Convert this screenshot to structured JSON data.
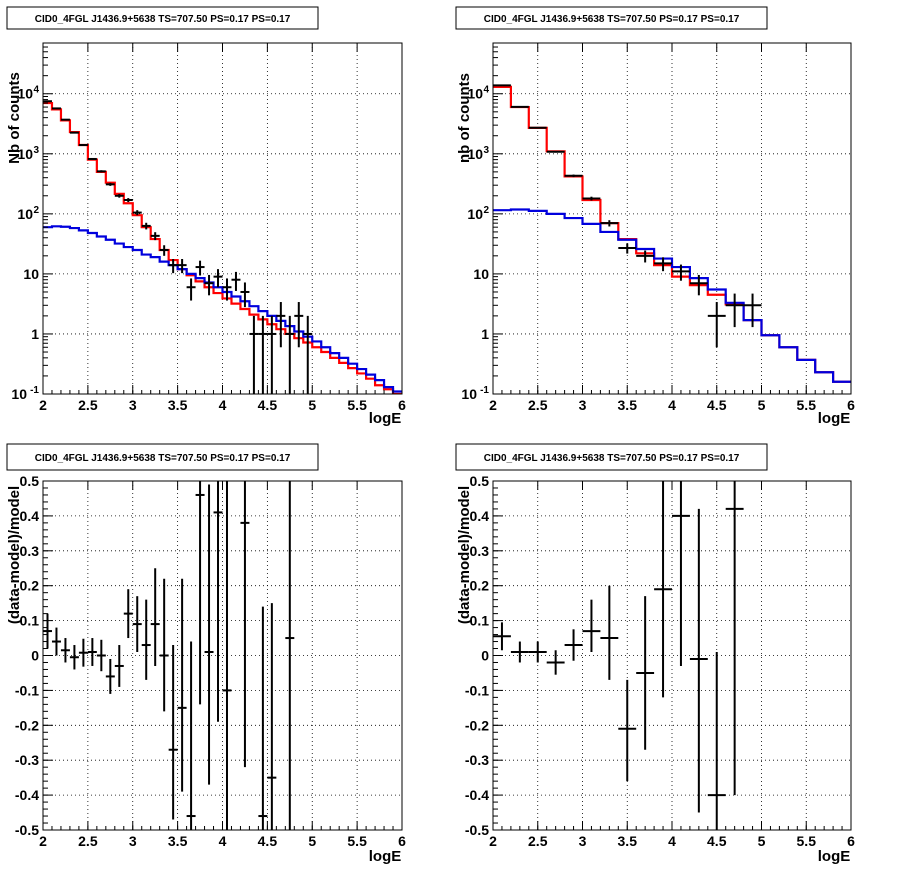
{
  "chart_data": [
    {
      "type": "line",
      "title": "CID0_4FGL J1436.9+5638 TS=707.50 PS=0.17 PS=0.17",
      "xlabel": "logE",
      "ylabel": "Nb of counts",
      "xlim": [
        2,
        6
      ],
      "ylim": [
        0.1,
        70000
      ],
      "yscale": "log",
      "grid": true,
      "xticks": [
        "2",
        "2.5",
        "3",
        "3.5",
        "4",
        "4.5",
        "5",
        "5.5",
        "6"
      ],
      "yticks": [
        {
          "value": 0.1,
          "base": "10",
          "exp": "-1"
        },
        {
          "value": 1,
          "base": "1",
          "exp": ""
        },
        {
          "value": 10,
          "base": "10",
          "exp": ""
        },
        {
          "value": 100,
          "base": "10",
          "exp": "2"
        },
        {
          "value": 1000,
          "base": "10",
          "exp": "3"
        },
        {
          "value": 10000,
          "base": "10",
          "exp": "4"
        }
      ],
      "bin_width": 0.1,
      "series": [
        {
          "color": "#ff0000",
          "kind": "step",
          "x": [
            2.0,
            2.1,
            2.2,
            2.3,
            2.4,
            2.5,
            2.6,
            2.7,
            2.8,
            2.9,
            3.0,
            3.1,
            3.2,
            3.3,
            3.4,
            3.5,
            3.6,
            3.7,
            3.8,
            3.9,
            4.0,
            4.1,
            4.2,
            4.3,
            4.4,
            4.5,
            4.6,
            4.7,
            4.8,
            4.9,
            5.0,
            5.1,
            5.2,
            5.3,
            5.4,
            5.5,
            5.6,
            5.7,
            5.8,
            5.9
          ],
          "values": [
            7000,
            5500,
            3600,
            2300,
            1400,
            800,
            500,
            330,
            215,
            150,
            95,
            60,
            38,
            25,
            17,
            12,
            9.5,
            7.5,
            6,
            4.8,
            3.9,
            3.2,
            2.6,
            2.1,
            1.75,
            1.45,
            1.2,
            1.0,
            0.85,
            0.72,
            0.6,
            0.5,
            0.4,
            0.33,
            0.27,
            0.22,
            0.18,
            0.14,
            0.12,
            0.1
          ]
        },
        {
          "color": "#0000dd",
          "kind": "step",
          "x": [
            2.0,
            2.1,
            2.2,
            2.3,
            2.4,
            2.5,
            2.6,
            2.7,
            2.8,
            2.9,
            3.0,
            3.1,
            3.2,
            3.3,
            3.4,
            3.5,
            3.6,
            3.7,
            3.8,
            3.9,
            4.0,
            4.1,
            4.2,
            4.3,
            4.4,
            4.5,
            4.6,
            4.7,
            4.8,
            4.9,
            5.0,
            5.1,
            5.2,
            5.3,
            5.4,
            5.5,
            5.6,
            5.7,
            5.8,
            5.9
          ],
          "values": [
            60,
            62,
            61,
            58,
            53,
            48,
            42,
            37,
            32,
            28,
            25,
            21,
            19,
            16,
            14,
            12,
            10,
            8.5,
            7.2,
            6,
            5,
            4.2,
            3.5,
            2.9,
            2.4,
            2.0,
            1.65,
            1.35,
            1.1,
            0.9,
            0.75,
            0.6,
            0.48,
            0.4,
            0.32,
            0.26,
            0.21,
            0.17,
            0.13,
            0.11
          ]
        },
        {
          "color": "#000000",
          "kind": "points",
          "x": [
            2.05,
            2.15,
            2.25,
            2.35,
            2.45,
            2.55,
            2.65,
            2.75,
            2.85,
            2.95,
            3.05,
            3.15,
            3.25,
            3.35,
            3.45,
            3.55,
            3.65,
            3.75,
            3.85,
            3.95,
            4.05,
            4.15,
            4.25,
            4.35,
            4.45,
            4.55,
            4.65,
            4.75,
            4.85,
            4.95
          ],
          "values": [
            7500,
            5700,
            3700,
            2250,
            1400,
            820,
            510,
            310,
            200,
            170,
            105,
            63,
            43,
            25,
            14,
            14,
            6,
            13,
            7,
            9,
            6,
            8,
            5,
            1,
            1,
            1,
            2,
            1,
            2,
            1
          ],
          "err_lo": [
            90,
            75,
            60,
            47,
            37,
            28,
            22,
            18,
            14,
            13,
            10,
            8,
            6.5,
            5,
            3.7,
            3.7,
            2.4,
            3.6,
            2.6,
            3,
            2.4,
            2.8,
            2.2,
            1,
            1,
            1,
            1.4,
            1,
            1.4,
            1
          ],
          "err_hi": [
            90,
            75,
            60,
            47,
            37,
            28,
            22,
            18,
            14,
            13,
            10,
            8,
            6.5,
            5,
            3.7,
            3.7,
            2.4,
            3.6,
            2.6,
            3,
            2.4,
            2.8,
            2.2,
            1,
            1,
            1,
            1.4,
            1,
            1.4,
            1
          ]
        }
      ]
    },
    {
      "type": "line",
      "title": "CID0_4FGL J1436.9+5638 TS=707.50 PS=0.17 PS=0.17",
      "xlabel": "logE",
      "ylabel": "nb of counts",
      "xlim": [
        2,
        6
      ],
      "ylim": [
        0.1,
        70000
      ],
      "yscale": "log",
      "grid": true,
      "xticks": [
        "2",
        "2.5",
        "3",
        "3.5",
        "4",
        "4.5",
        "5",
        "5.5",
        "6"
      ],
      "yticks": [
        {
          "value": 0.1,
          "base": "10",
          "exp": "-1"
        },
        {
          "value": 1,
          "base": "1",
          "exp": ""
        },
        {
          "value": 10,
          "base": "10",
          "exp": ""
        },
        {
          "value": 100,
          "base": "10",
          "exp": "2"
        },
        {
          "value": 1000,
          "base": "10",
          "exp": "3"
        },
        {
          "value": 10000,
          "base": "10",
          "exp": "4"
        }
      ],
      "bin_width": 0.2,
      "series": [
        {
          "color": "#ff0000",
          "kind": "step",
          "x": [
            2.0,
            2.2,
            2.4,
            2.6,
            2.8,
            3.0,
            3.2,
            3.4,
            3.6,
            3.8,
            4.0,
            4.2,
            4.4,
            4.6,
            4.8,
            5.0,
            5.2,
            5.4,
            5.6,
            5.8
          ],
          "values": [
            13000,
            6000,
            2700,
            1100,
            420,
            170,
            70,
            38,
            22,
            14,
            9,
            6.5,
            4.5,
            3.1,
            1.7,
            0.95,
            0.6,
            0.37,
            0.23,
            0.16
          ]
        },
        {
          "color": "#0000dd",
          "kind": "step",
          "x": [
            2.0,
            2.2,
            2.4,
            2.6,
            2.8,
            3.0,
            3.2,
            3.4,
            3.6,
            3.8,
            4.0,
            4.2,
            4.4,
            4.6,
            4.8,
            5.0,
            5.2,
            5.4,
            5.6,
            5.8
          ],
          "values": [
            115,
            118,
            112,
            100,
            85,
            68,
            50,
            37,
            26,
            18,
            13,
            8.5,
            5.5,
            3.3,
            1.7,
            0.95,
            0.6,
            0.37,
            0.23,
            0.16
          ]
        },
        {
          "color": "#000000",
          "kind": "points",
          "x": [
            2.1,
            2.3,
            2.5,
            2.7,
            2.9,
            3.1,
            3.3,
            3.5,
            3.7,
            3.9,
            4.1,
            4.3,
            4.5,
            4.7,
            4.9
          ],
          "values": [
            13800,
            6050,
            2720,
            1080,
            430,
            180,
            70,
            27,
            20,
            15,
            11,
            7,
            2,
            3,
            3
          ],
          "err_lo": [
            117,
            78,
            52,
            33,
            21,
            13,
            8.4,
            5.2,
            4.5,
            3.9,
            3.3,
            2.6,
            1.4,
            1.7,
            1.7
          ],
          "err_hi": [
            117,
            78,
            52,
            33,
            21,
            13,
            8.4,
            5.2,
            4.5,
            3.9,
            3.3,
            2.6,
            1.4,
            1.7,
            1.7
          ]
        }
      ]
    },
    {
      "type": "scatter",
      "title": "CID0_4FGL J1436.9+5638 TS=707.50 PS=0.17 PS=0.17",
      "xlabel": "logE",
      "ylabel": "(data-model)/model",
      "xlim": [
        2,
        6
      ],
      "ylim": [
        -0.5,
        0.5
      ],
      "yscale": "linear",
      "grid": true,
      "xticks": [
        "2",
        "2.5",
        "3",
        "3.5",
        "4",
        "4.5",
        "5",
        "5.5",
        "6"
      ],
      "yticks": [
        {
          "value": -0.5,
          "base": "-0.5",
          "exp": ""
        },
        {
          "value": -0.4,
          "base": "-0.4",
          "exp": ""
        },
        {
          "value": -0.3,
          "base": "-0.3",
          "exp": ""
        },
        {
          "value": -0.2,
          "base": "-0.2",
          "exp": ""
        },
        {
          "value": -0.1,
          "base": "-0.1",
          "exp": ""
        },
        {
          "value": 0,
          "base": "0",
          "exp": ""
        },
        {
          "value": 0.1,
          "base": "0.1",
          "exp": ""
        },
        {
          "value": 0.2,
          "base": "0.2",
          "exp": ""
        },
        {
          "value": 0.3,
          "base": "0.3",
          "exp": ""
        },
        {
          "value": 0.4,
          "base": "0.4",
          "exp": ""
        },
        {
          "value": 0.5,
          "base": "0.5",
          "exp": ""
        }
      ],
      "bin_width": 0.1,
      "series": [
        {
          "color": "#000000",
          "kind": "points",
          "x": [
            2.05,
            2.15,
            2.25,
            2.35,
            2.45,
            2.55,
            2.65,
            2.75,
            2.85,
            2.95,
            3.05,
            3.15,
            3.25,
            3.35,
            3.45,
            3.55,
            3.65,
            3.75,
            3.85,
            3.95,
            4.05,
            4.25,
            4.45,
            4.55,
            4.75
          ],
          "values": [
            0.07,
            0.04,
            0.015,
            -0.005,
            0.008,
            0.01,
            0.0,
            -0.06,
            -0.03,
            0.12,
            0.09,
            0.03,
            0.09,
            0.0,
            -0.27,
            -0.15,
            -0.46,
            0.46,
            0.01,
            0.41,
            -0.1,
            0.38,
            -0.46,
            -0.35,
            0.05
          ],
          "err_lo": [
            0.05,
            0.04,
            0.035,
            0.035,
            0.04,
            0.04,
            0.045,
            0.05,
            0.06,
            0.07,
            0.08,
            0.1,
            0.12,
            0.16,
            0.2,
            0.24,
            0.25,
            0.6,
            0.38,
            0.6,
            0.6,
            0.7,
            0.1,
            0.2,
            0.7
          ],
          "err_hi": [
            0.05,
            0.04,
            0.035,
            0.035,
            0.04,
            0.04,
            0.045,
            0.05,
            0.06,
            0.07,
            0.08,
            0.13,
            0.16,
            0.22,
            0.3,
            0.37,
            0.5,
            0.6,
            0.48,
            0.6,
            0.6,
            0.6,
            0.6,
            0.5,
            0.7
          ]
        }
      ]
    },
    {
      "type": "scatter",
      "title": "CID0_4FGL J1436.9+5638 TS=707.50 PS=0.17 PS=0.17",
      "xlabel": "logE",
      "ylabel": "(data-model)/model",
      "xlim": [
        2,
        6
      ],
      "ylim": [
        -0.5,
        0.5
      ],
      "yscale": "linear",
      "grid": true,
      "xticks": [
        "2",
        "2.5",
        "3",
        "3.5",
        "4",
        "4.5",
        "5",
        "5.5",
        "6"
      ],
      "yticks": [
        {
          "value": -0.5,
          "base": "-0.5",
          "exp": ""
        },
        {
          "value": -0.4,
          "base": "-0.4",
          "exp": ""
        },
        {
          "value": -0.3,
          "base": "-0.3",
          "exp": ""
        },
        {
          "value": -0.2,
          "base": "-0.2",
          "exp": ""
        },
        {
          "value": -0.1,
          "base": "-0.1",
          "exp": ""
        },
        {
          "value": 0,
          "base": "0",
          "exp": ""
        },
        {
          "value": 0.1,
          "base": "0.1",
          "exp": ""
        },
        {
          "value": 0.2,
          "base": "0.2",
          "exp": ""
        },
        {
          "value": 0.3,
          "base": "0.3",
          "exp": ""
        },
        {
          "value": 0.4,
          "base": "0.4",
          "exp": ""
        },
        {
          "value": 0.5,
          "base": "0.5",
          "exp": ""
        }
      ],
      "bin_width": 0.2,
      "series": [
        {
          "color": "#000000",
          "kind": "points",
          "x": [
            2.1,
            2.3,
            2.5,
            2.7,
            2.9,
            3.1,
            3.3,
            3.5,
            3.7,
            3.9,
            4.1,
            4.3,
            4.5,
            4.7
          ],
          "values": [
            0.055,
            0.01,
            0.01,
            -0.02,
            0.03,
            0.07,
            0.05,
            -0.21,
            -0.05,
            0.19,
            0.4,
            -0.01,
            -0.4,
            0.42
          ],
          "err_lo": [
            0.04,
            0.03,
            0.03,
            0.035,
            0.045,
            0.06,
            0.12,
            0.15,
            0.22,
            0.31,
            0.43,
            0.44,
            0.1,
            0.82
          ],
          "err_hi": [
            0.04,
            0.03,
            0.03,
            0.035,
            0.045,
            0.09,
            0.15,
            0.14,
            0.22,
            0.31,
            0.6,
            0.43,
            0.41,
            0.5
          ]
        }
      ]
    }
  ]
}
